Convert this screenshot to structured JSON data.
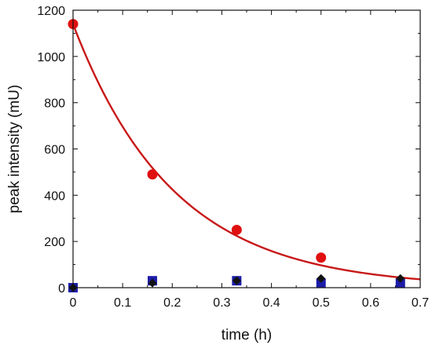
{
  "chart_data": {
    "type": "scatter",
    "title": "",
    "xlabel": "time (h)",
    "ylabel": "peak intensity (mU)",
    "xlim": [
      0,
      0.7
    ],
    "ylim": [
      0,
      1200
    ],
    "x_ticks": [
      0,
      0.1,
      0.2,
      0.3,
      0.4,
      0.5,
      0.6,
      0.7
    ],
    "x_tick_labels": [
      "0",
      "0.1",
      "0.2",
      "0.3",
      "0.4",
      "0.5",
      "0.6",
      "0.7"
    ],
    "y_ticks": [
      0,
      200,
      400,
      600,
      800,
      1000,
      1200
    ],
    "y_tick_labels": [
      "0",
      "200",
      "400",
      "600",
      "800",
      "1000",
      "1200"
    ],
    "grid": false,
    "legend": "none",
    "series": [
      {
        "marker": "circle",
        "color": "#e01010",
        "points": [
          {
            "x": 0,
            "y": 1140
          },
          {
            "x": 0.16,
            "y": 490
          },
          {
            "x": 0.33,
            "y": 250
          },
          {
            "x": 0.5,
            "y": 130
          }
        ]
      },
      {
        "marker": "square",
        "color": "#1c1ca8",
        "points": [
          {
            "x": 0,
            "y": 0
          },
          {
            "x": 0.16,
            "y": 30
          },
          {
            "x": 0.33,
            "y": 30
          },
          {
            "x": 0.5,
            "y": 20
          },
          {
            "x": 0.66,
            "y": 20
          }
        ]
      },
      {
        "marker": "diamond",
        "color": "#111111",
        "points": [
          {
            "x": 0,
            "y": 0
          },
          {
            "x": 0.16,
            "y": 20
          },
          {
            "x": 0.33,
            "y": 30
          },
          {
            "x": 0.5,
            "y": 40
          },
          {
            "x": 0.66,
            "y": 40
          }
        ]
      }
    ],
    "fit_curve": {
      "type": "exponential-decay",
      "color": "#c81818",
      "a": 1140,
      "k": 4.93,
      "x_start": 0,
      "x_end": 0.7
    }
  }
}
